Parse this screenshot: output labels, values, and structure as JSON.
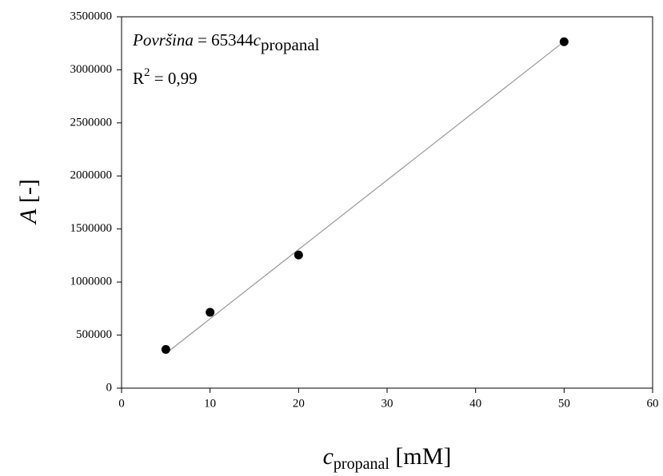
{
  "chart_data": {
    "type": "scatter",
    "x": [
      5,
      10,
      20,
      50
    ],
    "series": [
      {
        "color": "#000000",
        "values": [
          365000,
          715000,
          1255000,
          3265000
        ]
      }
    ],
    "fit_line": {
      "x": [
        5,
        50
      ],
      "values": [
        326720,
        3267200
      ],
      "color": "#999999"
    },
    "annotations": [
      [
        "Površina",
        " = 65344",
        "c",
        "propanal"
      ],
      [
        "R",
        "2",
        " = 0,99"
      ]
    ],
    "xlabel": [
      "c",
      "propanal",
      " [mM]"
    ],
    "ylabel": [
      "A",
      " [-]"
    ],
    "xlim": [
      0,
      60
    ],
    "xticks": [
      0,
      10,
      20,
      30,
      40,
      50,
      60
    ],
    "ylim": [
      0,
      3500000
    ],
    "yticks": [
      0,
      500000,
      1000000,
      1500000,
      2000000,
      2500000,
      3000000,
      3500000
    ]
  }
}
